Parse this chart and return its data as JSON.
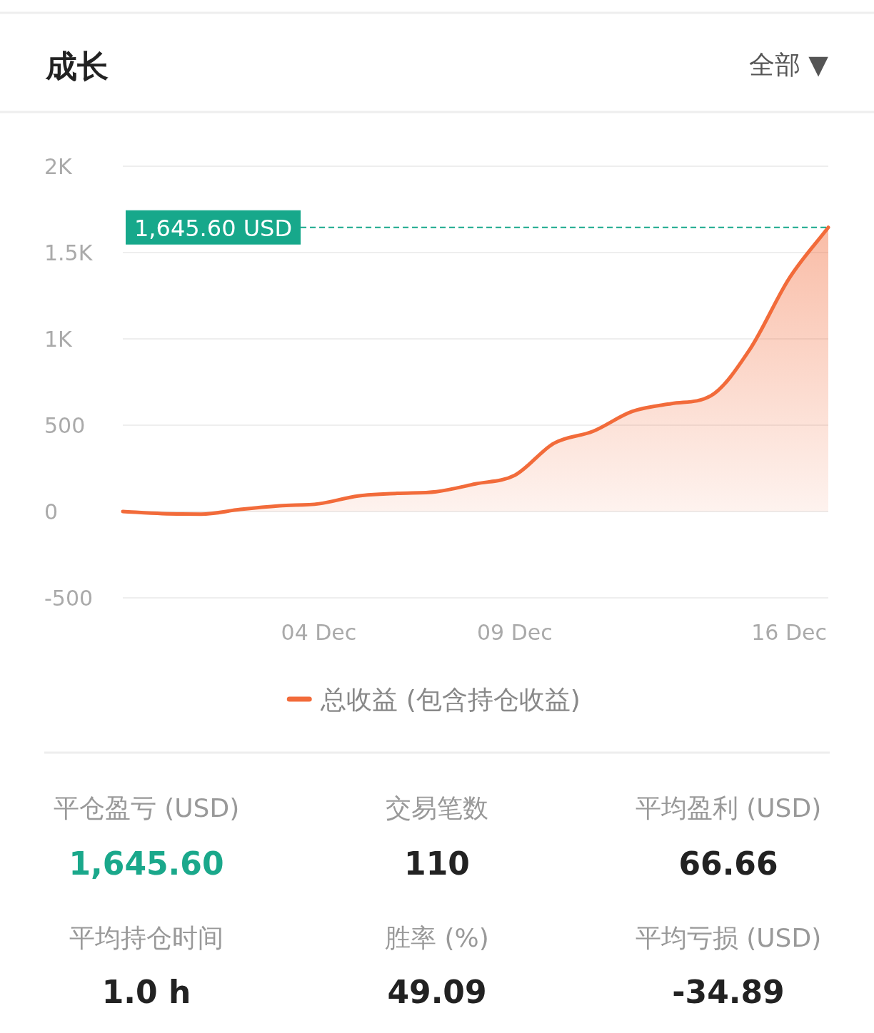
{
  "chart_data": {
    "type": "area",
    "title": "成长",
    "x": [
      "--11-29",
      "--11-30",
      "--12-01",
      "--12-02",
      "--12-03",
      "--12-04",
      "--12-05",
      "--12-06",
      "--12-07",
      "--12-08",
      "--12-09",
      "--12-10",
      "--12-11",
      "--12-12",
      "--12-13",
      "--12-14",
      "--12-15",
      "--12-16",
      "--12-17"
    ],
    "series": [
      {
        "name": "总收益 (包含持仓收益)",
        "color": "#f26b3a",
        "values": [
          0,
          -12,
          -15,
          12,
          33,
          45,
          90,
          105,
          115,
          160,
          210,
          395,
          465,
          580,
          625,
          670,
          940,
          1350,
          1645.6
        ]
      }
    ],
    "xlim": [
      "--11-29",
      "--12-17"
    ],
    "ylim": [
      -500,
      2000
    ],
    "xticks": [
      {
        "value": "--12-04",
        "label": "04 Dec"
      },
      {
        "value": "--12-09",
        "label": "09 Dec"
      },
      {
        "value": "--12-16",
        "label": "16 Dec"
      }
    ],
    "yticks": [
      {
        "value": 2000,
        "label": "2K"
      },
      {
        "value": 1500,
        "label": "1.5K"
      },
      {
        "value": 1000,
        "label": "1K"
      },
      500,
      0,
      -500
    ],
    "grid": "y",
    "legend": "bottom",
    "ref_lines": [
      {
        "axis": "y",
        "value": 1645.6,
        "label": "1,645.60 USD",
        "color": "#17a88b",
        "line_style": "dashed"
      }
    ],
    "annotations": [
      "全部 ▼",
      "平仓盈亏 (USD)",
      "1,645.60",
      "交易笔数",
      "110",
      "平均盈利 (USD)",
      "66.66",
      "平均持仓时间",
      "1.0 h",
      "胜率 (%)",
      "49.09",
      "平均亏损 (USD)",
      "-34.89"
    ]
  }
}
